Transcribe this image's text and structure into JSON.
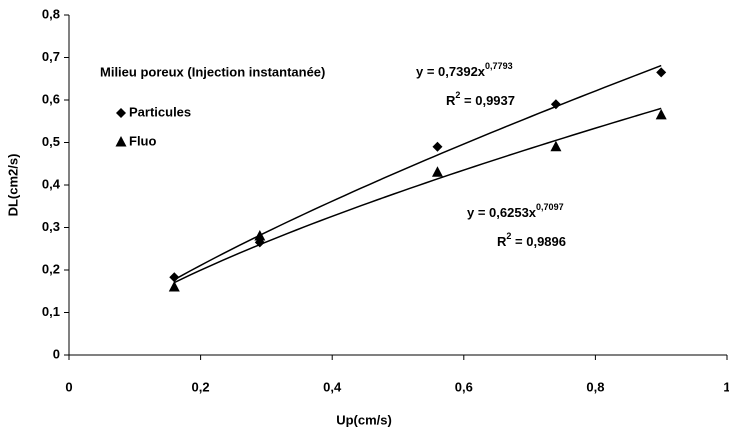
{
  "chart_data": {
    "type": "scatter",
    "annotation": "Milieu poreux (Injection instantanée)",
    "x_label": "Up(cm/s)",
    "y_label": "DL(cm2/s)",
    "xlim": [
      0,
      1
    ],
    "ylim": [
      0,
      0.8
    ],
    "xticks": [
      0,
      {
        "value": 0.2,
        "label": "0,2"
      },
      {
        "value": 0.4,
        "label": "0,4"
      },
      {
        "value": 0.6,
        "label": "0,6"
      },
      {
        "value": 0.8,
        "label": "0,8"
      },
      1
    ],
    "yticks": [
      0,
      {
        "value": 0.1,
        "label": "0,1"
      },
      {
        "value": 0.2,
        "label": "0,2"
      },
      {
        "value": 0.3,
        "label": "0,3"
      },
      {
        "value": 0.4,
        "label": "0,4"
      },
      {
        "value": 0.5,
        "label": "0,5"
      },
      {
        "value": 0.6,
        "label": "0,6"
      },
      {
        "value": 0.7,
        "label": "0,7"
      },
      {
        "value": 0.8,
        "label": "0,8"
      }
    ],
    "grid": false,
    "series": [
      {
        "name": "Particules",
        "color": "#000000",
        "marker": "diamond",
        "x": [
          0.16,
          0.29,
          0.56,
          0.74,
          0.9
        ],
        "values": [
          0.183,
          0.265,
          0.49,
          0.59,
          0.665
        ],
        "trendline": {
          "type": "power",
          "coefficient": 0.7392,
          "exponent": 0.7793,
          "r_squared": 0.9937,
          "equation_label": "y = 0,7392x",
          "exponent_label": "0,7793",
          "r_label": "R",
          "r_power_label": "2",
          "r_squared_label": " = 0,9937"
        }
      },
      {
        "name": "Fluo",
        "color": "#000000",
        "marker": "triangle",
        "x": [
          0.16,
          0.29,
          0.56,
          0.74,
          0.9
        ],
        "values": [
          0.16,
          0.28,
          0.43,
          0.49,
          0.565
        ],
        "trendline": {
          "type": "power",
          "coefficient": 0.6253,
          "exponent": 0.7097,
          "r_squared": 0.9896,
          "equation_label": "y = 0,6253x",
          "exponent_label": "0,7097",
          "r_label": "R",
          "r_power_label": "2",
          "r_squared_label": " = 0,9896"
        }
      }
    ]
  }
}
